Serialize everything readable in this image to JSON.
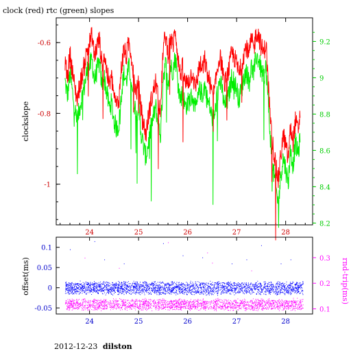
{
  "page": {
    "title": "clock (red) rtc (green) slopes",
    "footer_date": "2012-12-23",
    "footer_host": "dilston"
  },
  "chart_data": [
    {
      "type": "line",
      "title": "clock (red) rtc (green) slopes",
      "ylabel": "clockslope",
      "xlim": [
        23.32,
        28.55
      ],
      "ylim": [
        -1.115,
        -0.53
      ],
      "y2lim": [
        8.19,
        9.33
      ],
      "xticks": [
        24,
        25,
        26,
        27,
        28
      ],
      "yticks": [
        -0.6,
        -0.8,
        -1
      ],
      "y2ticks": [
        8.2,
        8.4,
        8.6,
        8.8,
        9,
        9.2
      ],
      "ytick_labels": [
        "-0.6",
        "-0.8",
        "-1"
      ],
      "y2tick_labels": [
        "8.2",
        "8.4",
        "8.6",
        "8.8",
        "9",
        "9.2"
      ],
      "xtick_labels": [
        "24",
        "25",
        "26",
        "27",
        "28"
      ],
      "colors": {
        "clock": "#ff0000",
        "rtc": "#00ee00",
        "axis_left": "#cc0000",
        "axis_right": "#00cc00",
        "xticks": "#cc0000"
      },
      "series": [
        {
          "name": "clock",
          "axis": "left",
          "x": [
            23.5,
            23.55,
            23.6,
            23.65,
            23.7,
            23.75,
            23.8,
            23.85,
            23.9,
            23.95,
            24.0,
            24.05,
            24.1,
            24.15,
            24.2,
            24.25,
            24.3,
            24.35,
            24.4,
            24.45,
            24.5,
            24.55,
            24.6,
            24.65,
            24.7,
            24.75,
            24.8,
            24.85,
            24.9,
            24.95,
            25.0,
            25.05,
            25.1,
            25.15,
            25.2,
            25.25,
            25.3,
            25.35,
            25.4,
            25.45,
            25.5,
            25.55,
            25.6,
            25.65,
            25.7,
            25.75,
            25.8,
            25.85,
            25.9,
            25.95,
            26.0,
            26.05,
            26.1,
            26.15,
            26.2,
            26.25,
            26.3,
            26.35,
            26.4,
            26.45,
            26.5,
            26.55,
            26.6,
            26.65,
            26.7,
            26.75,
            26.8,
            26.85,
            26.9,
            26.95,
            27.0,
            27.05,
            27.1,
            27.15,
            27.2,
            27.25,
            27.3,
            27.35,
            27.4,
            27.45,
            27.5,
            27.55,
            27.6,
            27.65,
            27.7,
            27.75,
            27.8,
            27.85,
            27.9,
            27.95,
            28.0,
            28.05,
            28.1,
            28.15,
            28.2,
            28.25,
            28.3
          ],
          "values": [
            -0.65,
            -0.7,
            -0.63,
            -0.68,
            -0.73,
            -0.76,
            -0.72,
            -0.69,
            -0.66,
            -0.62,
            -0.6,
            -0.58,
            -0.64,
            -0.61,
            -0.59,
            -0.66,
            -0.63,
            -0.68,
            -0.72,
            -0.7,
            -0.75,
            -0.78,
            -0.76,
            -0.67,
            -0.62,
            -0.64,
            -0.6,
            -0.63,
            -0.7,
            -0.74,
            -0.72,
            -0.79,
            -0.83,
            -0.86,
            -0.81,
            -0.77,
            -0.74,
            -0.71,
            -0.76,
            -0.79,
            -0.62,
            -0.58,
            -0.63,
            -0.59,
            -0.61,
            -0.56,
            -0.64,
            -0.69,
            -0.67,
            -0.72,
            -0.71,
            -0.7,
            -0.68,
            -0.73,
            -0.7,
            -0.66,
            -0.68,
            -0.65,
            -0.69,
            -0.71,
            -0.75,
            -0.74,
            -0.68,
            -0.64,
            -0.66,
            -0.72,
            -0.7,
            -0.67,
            -0.63,
            -0.64,
            -0.66,
            -0.69,
            -0.66,
            -0.63,
            -0.61,
            -0.64,
            -0.59,
            -0.62,
            -0.57,
            -0.58,
            -0.61,
            -0.63,
            -0.6,
            -0.73,
            -0.84,
            -0.9,
            -0.95,
            -0.99,
            -0.92,
            -0.86,
            -0.89,
            -0.93,
            -0.84,
            -0.88,
            -0.82,
            -0.85,
            -0.8
          ]
        },
        {
          "name": "rtc",
          "axis": "right",
          "x": [
            23.5,
            23.55,
            23.6,
            23.65,
            23.7,
            23.75,
            23.8,
            23.85,
            23.9,
            23.95,
            24.0,
            24.05,
            24.1,
            24.15,
            24.2,
            24.25,
            24.3,
            24.35,
            24.4,
            24.45,
            24.5,
            24.55,
            24.6,
            24.65,
            24.7,
            24.75,
            24.8,
            24.85,
            24.9,
            24.95,
            25.0,
            25.05,
            25.1,
            25.15,
            25.2,
            25.25,
            25.3,
            25.35,
            25.4,
            25.45,
            25.5,
            25.55,
            25.6,
            25.65,
            25.7,
            25.75,
            25.8,
            25.85,
            25.9,
            25.95,
            26.0,
            26.05,
            26.1,
            26.15,
            26.2,
            26.25,
            26.3,
            26.35,
            26.4,
            26.45,
            26.5,
            26.55,
            26.6,
            26.65,
            26.7,
            26.75,
            26.8,
            26.85,
            26.9,
            26.95,
            27.0,
            27.05,
            27.1,
            27.15,
            27.2,
            27.25,
            27.3,
            27.35,
            27.4,
            27.45,
            27.5,
            27.55,
            27.6,
            27.65,
            27.7,
            27.75,
            27.8,
            27.85,
            27.9,
            27.95,
            28.0,
            28.05,
            28.1,
            28.15,
            28.2,
            28.25,
            28.3
          ],
          "values": [
            8.98,
            8.9,
            9.02,
            8.92,
            8.82,
            8.76,
            8.84,
            8.9,
            8.96,
            9.04,
            9.06,
            9.1,
            8.98,
            9.04,
            9.08,
            8.96,
            9.0,
            8.92,
            8.84,
            8.86,
            8.76,
            8.72,
            8.74,
            8.92,
            9.02,
            8.98,
            9.06,
            9.0,
            8.88,
            8.8,
            8.84,
            8.7,
            8.62,
            8.56,
            8.64,
            8.72,
            8.78,
            8.84,
            8.74,
            8.68,
            9.0,
            9.08,
            8.98,
            9.06,
            9.04,
            9.12,
            8.98,
            8.88,
            8.92,
            8.84,
            8.86,
            8.88,
            8.9,
            8.82,
            8.86,
            8.94,
            8.9,
            8.96,
            8.88,
            8.84,
            8.78,
            8.78,
            8.9,
            8.98,
            8.94,
            8.84,
            8.86,
            8.92,
            9.0,
            8.98,
            8.94,
            8.88,
            8.94,
            9.0,
            9.04,
            8.98,
            9.06,
            9.02,
            9.12,
            9.1,
            9.04,
            9.0,
            9.06,
            8.84,
            8.62,
            8.48,
            8.4,
            8.3,
            8.46,
            8.56,
            8.5,
            8.42,
            8.6,
            8.52,
            8.64,
            8.58,
            8.66
          ]
        }
      ]
    },
    {
      "type": "scatter",
      "ylabel": "offset(ms)",
      "y2label": "rnd-trip(ms)",
      "xlim": [
        23.32,
        28.55
      ],
      "ylim": [
        -0.065,
        0.125
      ],
      "y2lim": [
        0.08,
        0.38
      ],
      "xticks": [
        24,
        25,
        26,
        27,
        28
      ],
      "xtick_labels": [
        "24",
        "25",
        "26",
        "27",
        "28"
      ],
      "yticks": [
        -0.05,
        0,
        0.05,
        0.1
      ],
      "ytick_labels": [
        "-0.05",
        "0",
        "0.05",
        "0.1"
      ],
      "y2ticks": [
        0.1,
        0.2,
        0.3
      ],
      "y2tick_labels": [
        "0.1",
        "0.2",
        "0.3"
      ],
      "colors": {
        "offset": "#0000ff",
        "rnd_trip": "#ff00ff"
      },
      "series": [
        {
          "name": "offset",
          "axis": "left",
          "band_center": 0.0,
          "band_halfwidth": 0.018,
          "outliers": [
            [
              23.6,
              0.095
            ],
            [
              24.1,
              0.115
            ],
            [
              24.3,
              0.07
            ],
            [
              24.7,
              0.06
            ],
            [
              25.5,
              0.11
            ],
            [
              25.9,
              0.08
            ],
            [
              26.3,
              0.075
            ],
            [
              26.9,
              0.06
            ],
            [
              27.2,
              0.07
            ],
            [
              27.5,
              0.105
            ],
            [
              27.9,
              0.06
            ],
            [
              28.1,
              0.07
            ]
          ]
        },
        {
          "name": "rnd-trip",
          "axis": "right",
          "band_center": 0.118,
          "band_halfwidth": 0.025,
          "outliers": [
            [
              23.9,
              0.3
            ],
            [
              24.6,
              0.26
            ],
            [
              25.6,
              0.36
            ],
            [
              26.4,
              0.32
            ],
            [
              26.5,
              0.28
            ],
            [
              27.3,
              0.25
            ]
          ]
        }
      ]
    }
  ]
}
